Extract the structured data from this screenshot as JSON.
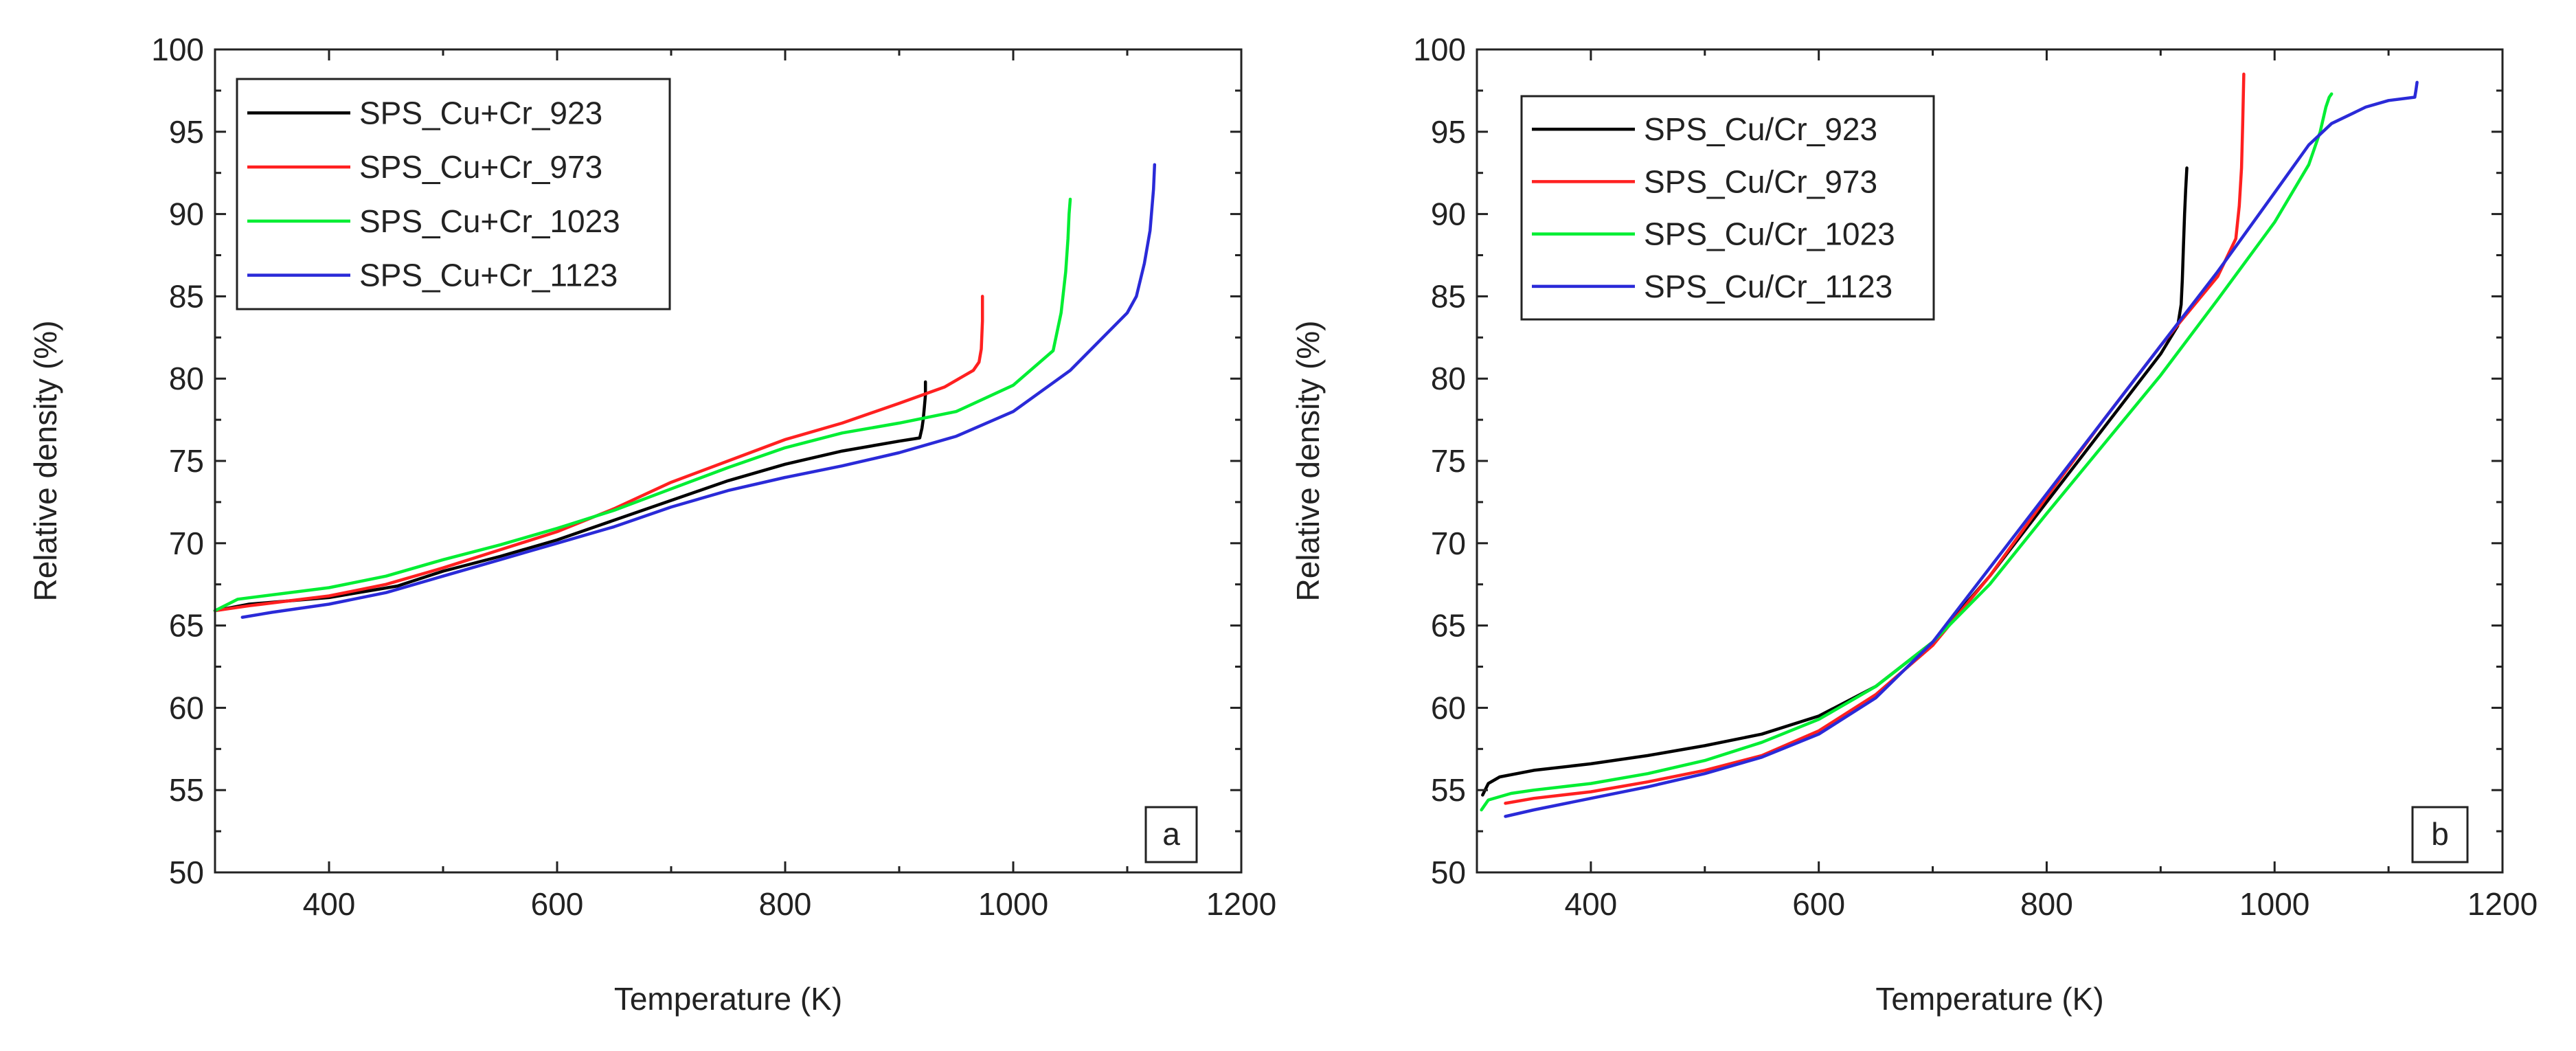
{
  "chart_data": [
    {
      "type": "line",
      "panel_label": "a",
      "xlabel": "Temperature (K)",
      "ylabel": "Relative density (%)",
      "xlim": [
        300,
        1200
      ],
      "ylim": [
        50,
        100
      ],
      "xticks": [
        "400",
        "600",
        "800",
        "1000",
        "1200"
      ],
      "yticks": [
        "50",
        "55",
        "60",
        "65",
        "70",
        "75",
        "80",
        "85",
        "90",
        "95",
        "100"
      ],
      "legend_position": "top-left",
      "grid": false,
      "series": [
        {
          "name": "SPS_Cu+Cr_923",
          "color": "#000000",
          "x": [
            300,
            330,
            400,
            460,
            500,
            550,
            600,
            650,
            700,
            750,
            800,
            850,
            900,
            918,
            920,
            921,
            922,
            923,
            923
          ],
          "y": [
            65.9,
            66.3,
            66.7,
            67.4,
            68.3,
            69.2,
            70.2,
            71.4,
            72.6,
            73.8,
            74.8,
            75.6,
            76.2,
            76.4,
            77.0,
            77.5,
            78.2,
            79.0,
            79.8
          ]
        },
        {
          "name": "SPS_Cu+Cr_973",
          "color": "#ff2020",
          "x": [
            300,
            330,
            400,
            450,
            500,
            550,
            600,
            650,
            700,
            750,
            800,
            850,
            900,
            940,
            965,
            970,
            972,
            973,
            973
          ],
          "y": [
            65.9,
            66.2,
            66.8,
            67.5,
            68.5,
            69.6,
            70.7,
            72.1,
            73.7,
            75.0,
            76.3,
            77.3,
            78.5,
            79.5,
            80.5,
            81.0,
            81.8,
            83.5,
            85.0
          ]
        },
        {
          "name": "SPS_Cu+Cr_1023",
          "color": "#00ee33",
          "x": [
            300,
            320,
            400,
            450,
            500,
            550,
            600,
            650,
            700,
            750,
            800,
            850,
            900,
            950,
            1000,
            1035,
            1042,
            1046,
            1048,
            1049,
            1050
          ],
          "y": [
            65.9,
            66.6,
            67.3,
            68.0,
            69.0,
            69.9,
            70.9,
            72.0,
            73.3,
            74.6,
            75.8,
            76.7,
            77.3,
            78.0,
            79.6,
            81.7,
            84.0,
            86.5,
            88.5,
            90.0,
            90.9
          ]
        },
        {
          "name": "SPS_Cu+Cr_1123",
          "color": "#2a2ad8",
          "x": [
            324,
            350,
            400,
            450,
            500,
            550,
            600,
            650,
            700,
            750,
            800,
            850,
            900,
            950,
            1000,
            1050,
            1100,
            1108,
            1115,
            1120,
            1123,
            1124
          ],
          "y": [
            65.5,
            65.8,
            66.3,
            67.0,
            68.0,
            69.0,
            70.0,
            71.0,
            72.2,
            73.2,
            74.0,
            74.7,
            75.5,
            76.5,
            78.0,
            80.5,
            84.0,
            85.0,
            87.0,
            89.0,
            91.5,
            93.0
          ]
        }
      ]
    },
    {
      "type": "line",
      "panel_label": "b",
      "xlabel": "Temperature (K)",
      "ylabel": "Relative density (%)",
      "xlim": [
        300,
        1200
      ],
      "ylim": [
        50,
        100
      ],
      "xticks": [
        "400",
        "600",
        "800",
        "1000",
        "1200"
      ],
      "yticks": [
        "50",
        "55",
        "60",
        "65",
        "70",
        "75",
        "80",
        "85",
        "90",
        "95",
        "100"
      ],
      "legend_position": "top-left",
      "grid": false,
      "series": [
        {
          "name": "SPS_Cu/Cr_923",
          "color": "#000000",
          "x": [
            305,
            310,
            320,
            350,
            400,
            450,
            500,
            550,
            600,
            650,
            700,
            750,
            800,
            850,
            900,
            915,
            918,
            919,
            920,
            921,
            922,
            923
          ],
          "y": [
            54.7,
            55.4,
            55.8,
            56.2,
            56.6,
            57.1,
            57.7,
            58.4,
            59.5,
            61.3,
            64.0,
            68.0,
            72.5,
            77.0,
            81.5,
            83.2,
            84.5,
            86.0,
            88.0,
            90.0,
            91.5,
            92.8
          ]
        },
        {
          "name": "SPS_Cu/Cr_973",
          "color": "#ff2020",
          "x": [
            325,
            350,
            400,
            450,
            500,
            550,
            600,
            650,
            700,
            750,
            800,
            850,
            900,
            950,
            966,
            969,
            971,
            972,
            973
          ],
          "y": [
            54.2,
            54.5,
            54.9,
            55.5,
            56.2,
            57.1,
            58.6,
            60.8,
            63.8,
            68.0,
            72.8,
            77.5,
            82.0,
            86.2,
            88.5,
            90.5,
            92.8,
            95.5,
            98.5
          ]
        },
        {
          "name": "SPS_Cu/Cr_1023",
          "color": "#00ee33",
          "x": [
            304,
            310,
            330,
            350,
            400,
            450,
            500,
            550,
            600,
            650,
            700,
            750,
            800,
            850,
            900,
            950,
            1000,
            1030,
            1040,
            1045,
            1048,
            1050
          ],
          "y": [
            53.8,
            54.4,
            54.8,
            55.0,
            55.4,
            56.0,
            56.8,
            57.9,
            59.3,
            61.3,
            64.0,
            67.5,
            71.8,
            76.0,
            80.2,
            84.8,
            89.5,
            93.0,
            95.0,
            96.5,
            97.1,
            97.3
          ]
        },
        {
          "name": "SPS_Cu/Cr_1123",
          "color": "#2a2ad8",
          "x": [
            325,
            350,
            400,
            450,
            500,
            550,
            600,
            650,
            700,
            750,
            800,
            850,
            900,
            950,
            1000,
            1030,
            1050,
            1080,
            1100,
            1123,
            1124,
            1125
          ],
          "y": [
            53.4,
            53.8,
            54.5,
            55.2,
            56.0,
            57.0,
            58.4,
            60.6,
            64.0,
            68.5,
            73.0,
            77.5,
            82.0,
            86.5,
            91.3,
            94.2,
            95.5,
            96.5,
            96.9,
            97.1,
            97.5,
            98.0
          ]
        }
      ]
    }
  ]
}
